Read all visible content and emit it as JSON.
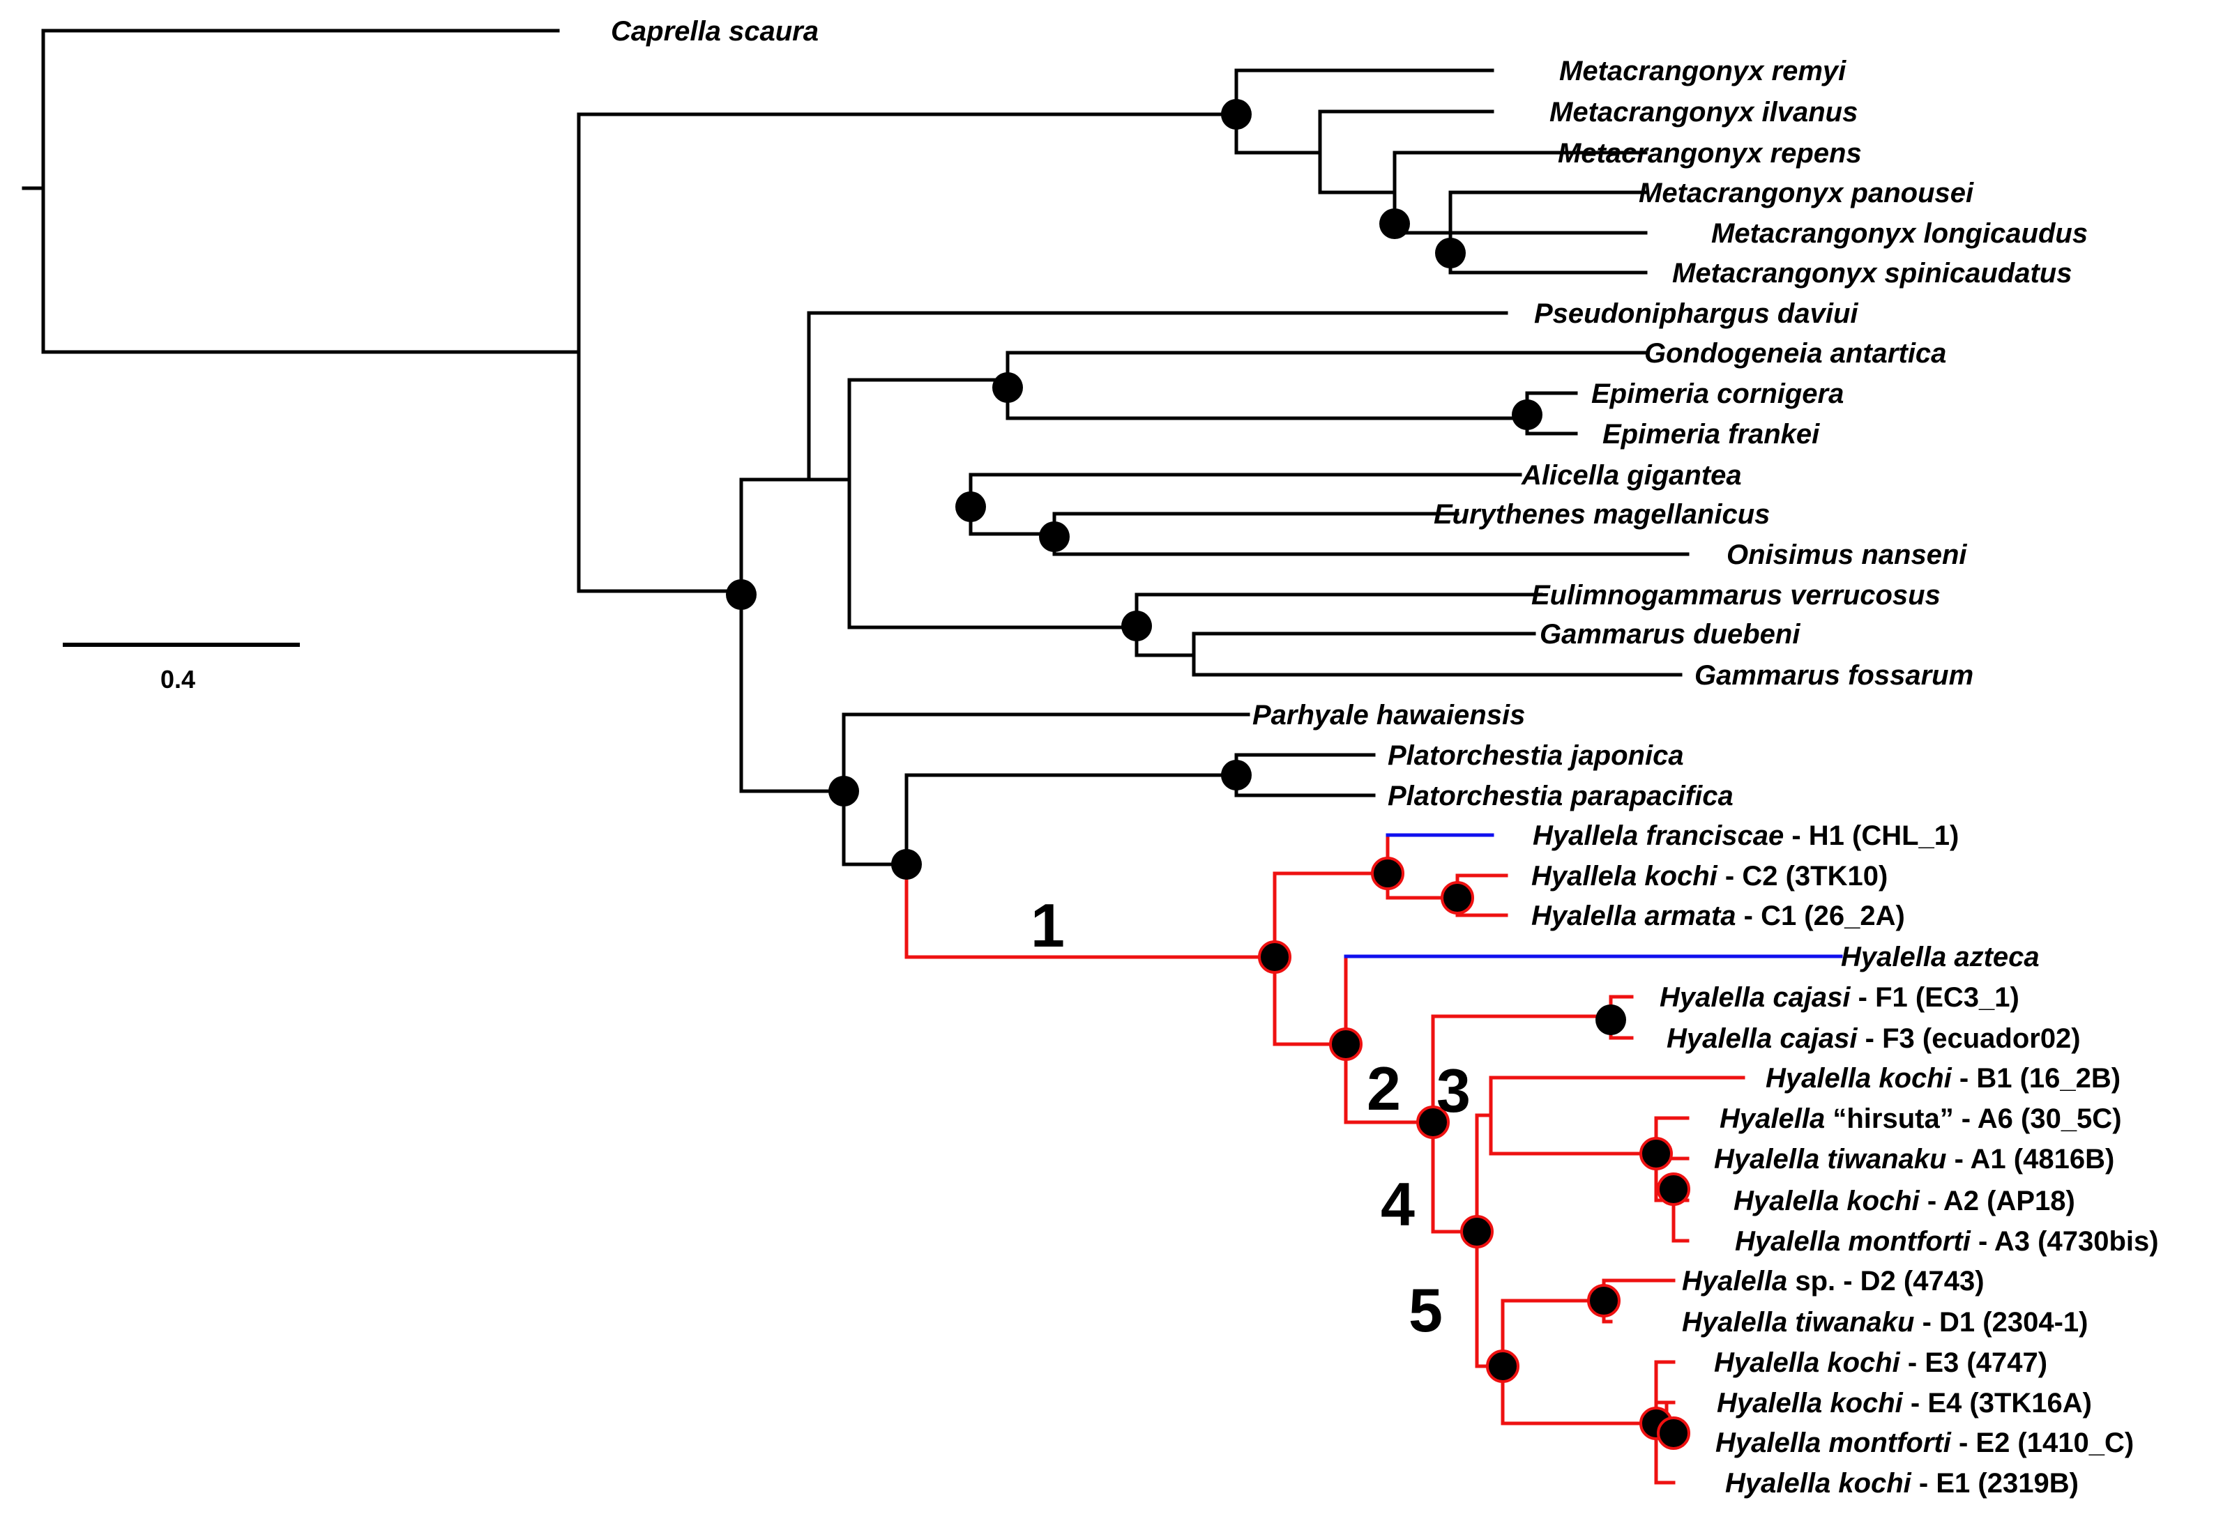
{
  "tree": {
    "scale_label": "0.4",
    "colors": {
      "default": "#000000",
      "red": "#ee1111",
      "blue": "#1010ee"
    },
    "clade_labels": [
      "1",
      "2",
      "3",
      "4",
      "5"
    ],
    "taxa": [
      {
        "name": "Caprella scaura",
        "suffix": ""
      },
      {
        "name": "Metacrangonyx remyi",
        "suffix": ""
      },
      {
        "name": "Metacrangonyx ilvanus",
        "suffix": ""
      },
      {
        "name": "Metacrangonyx repens",
        "suffix": ""
      },
      {
        "name": "Metacrangonyx panousei",
        "suffix": ""
      },
      {
        "name": "Metacrangonyx longicaudus",
        "suffix": ""
      },
      {
        "name": "Metacrangonyx spinicaudatus",
        "suffix": ""
      },
      {
        "name": "Pseudoniphargus daviui",
        "suffix": ""
      },
      {
        "name": "Gondogeneia antartica",
        "suffix": ""
      },
      {
        "name": "Epimeria cornigera",
        "suffix": ""
      },
      {
        "name": "Epimeria frankei",
        "suffix": ""
      },
      {
        "name": "Alicella gigantea",
        "suffix": ""
      },
      {
        "name": "Eurythenes magellanicus",
        "suffix": ""
      },
      {
        "name": "Onisimus nanseni",
        "suffix": ""
      },
      {
        "name": "Eulimnogammarus verrucosus",
        "suffix": ""
      },
      {
        "name": "Gammarus duebeni",
        "suffix": ""
      },
      {
        "name": "Gammarus fossarum",
        "suffix": ""
      },
      {
        "name": "Parhyale hawaiensis",
        "suffix": ""
      },
      {
        "name": "Platorchestia japonica",
        "suffix": ""
      },
      {
        "name": "Platorchestia parapacifica",
        "suffix": ""
      },
      {
        "name": "Hyallela franciscae",
        "suffix": " - H1 (CHL_1)"
      },
      {
        "name": "Hyallela kochi",
        "suffix": " - C2 (3TK10)"
      },
      {
        "name": "Hyalella armata",
        "suffix": " - C1 (26_2A)"
      },
      {
        "name": "Hyalella azteca",
        "suffix": ""
      },
      {
        "name": "Hyalella cajasi",
        "suffix": " - F1 (EC3_1)"
      },
      {
        "name": "Hyalella cajasi",
        "suffix": " - F3 (ecuador02)"
      },
      {
        "name": "Hyalella kochi",
        "suffix": " - B1 (16_2B)"
      },
      {
        "name": "Hyalella",
        "suffix": " “hirsuta” - A6 (30_5C)"
      },
      {
        "name": "Hyalella tiwanaku",
        "suffix": " - A1 (4816B)"
      },
      {
        "name": "Hyalella kochi",
        "suffix": " - A2 (AP18)"
      },
      {
        "name": "Hyalella montforti",
        "suffix": " - A3 (4730bis)"
      },
      {
        "name": "Hyalella",
        "suffix": " sp. - D2 (4743)"
      },
      {
        "name": "Hyalella tiwanaku",
        "suffix": " - D1 (2304-1)"
      },
      {
        "name": "Hyalella kochi",
        "suffix": " - E3 (4747)"
      },
      {
        "name": "Hyalella kochi",
        "suffix": " - E4 (3TK16A)"
      },
      {
        "name": "Hyalella montforti",
        "suffix": " - E2 (1410_C)"
      },
      {
        "name": "Hyalella kochi",
        "suffix": " - E1 (2319B)"
      }
    ]
  }
}
